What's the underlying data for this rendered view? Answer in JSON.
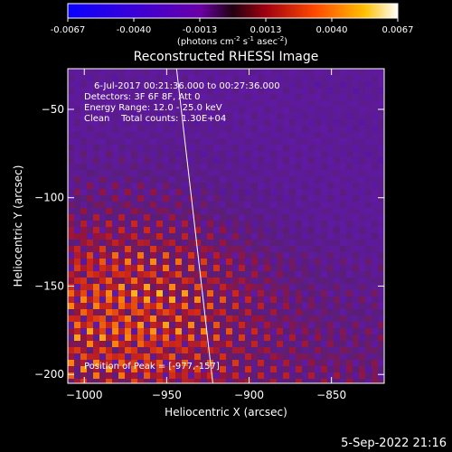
{
  "chart_data": {
    "type": "heatmap",
    "title": "Reconstructed RHESSI Image",
    "xlabel": "Heliocentric X (arcsec)",
    "ylabel": "Heliocentric Y (arcsec)",
    "xlim": [
      -1010,
      -818
    ],
    "ylim": [
      -205,
      -27
    ],
    "xticks": [
      -1000,
      -950,
      -900,
      -850
    ],
    "yticks": [
      -50,
      -100,
      -150,
      -200
    ],
    "colorbar": {
      "min": -0.0067,
      "max": 0.0067,
      "ticks": [
        "-0.0067",
        "-0.0040",
        "-0.0013",
        "0.0013",
        "0.0040",
        "0.0067"
      ],
      "units_label": "(photons cm",
      "units_exp1": "-2",
      "units_mid": " s",
      "units_exp2": "-1",
      "units_mid2": " asec",
      "units_exp3": "-2",
      "units_end": ")"
    },
    "annotations": {
      "time_range": "6-Jul-2017 00:21:36.000 to 00:27:36.000",
      "detectors": "Detectors: 3F 6F 8F, Att 0",
      "energy": "Energy Range: 12.0 - 25.0 keV",
      "clean": "Clean    Total counts: 1.30E+04",
      "peak": "Position of Peak = [-977,-157]"
    },
    "peak_position": [
      -977,
      -157
    ],
    "limb_line": {
      "x_top": -944,
      "y_top": -27,
      "x_bottom": -922,
      "y_bottom": -205
    },
    "grid": false
  },
  "footer": {
    "timestamp": "5-Sep-2022 21:16"
  }
}
